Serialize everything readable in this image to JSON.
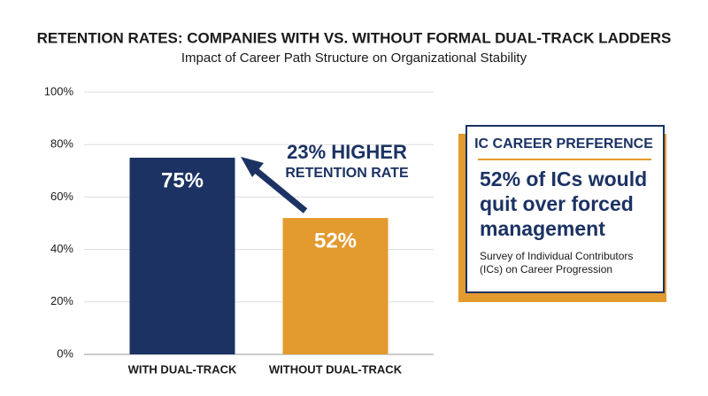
{
  "chart_data": {
    "type": "bar",
    "title": "RETENTION RATES: COMPANIES WITH VS. WITHOUT FORMAL DUAL-TRACK LADDERS",
    "subtitle": "Impact of Career Path Structure on Organizational Stability",
    "categories": [
      "WITH DUAL-TRACK",
      "WITHOUT DUAL-TRACK"
    ],
    "values": [
      75,
      52
    ],
    "value_labels": [
      "75%",
      "52%"
    ],
    "colors": [
      "#1b3263",
      "#e39a2e"
    ],
    "ylim": [
      0,
      100
    ],
    "yticks": [
      {
        "value": 0,
        "label": "0%"
      },
      {
        "value": 20,
        "label": "20%"
      },
      {
        "value": 40,
        "label": "40%"
      },
      {
        "value": 60,
        "label": "60%"
      },
      {
        "value": 80,
        "label": "80%"
      },
      {
        "value": 100,
        "label": "100%"
      }
    ],
    "grid": true,
    "annotation": [
      "23% HIGHER",
      "RETENTION RATE"
    ],
    "callout": {
      "heading": "IC CAREER PREFERENCE",
      "statement": [
        "52% of ICs would",
        "quit over forced",
        "management"
      ],
      "source": [
        "Survey of Individual Contributors",
        "(ICs) on Career Progression"
      ]
    }
  }
}
